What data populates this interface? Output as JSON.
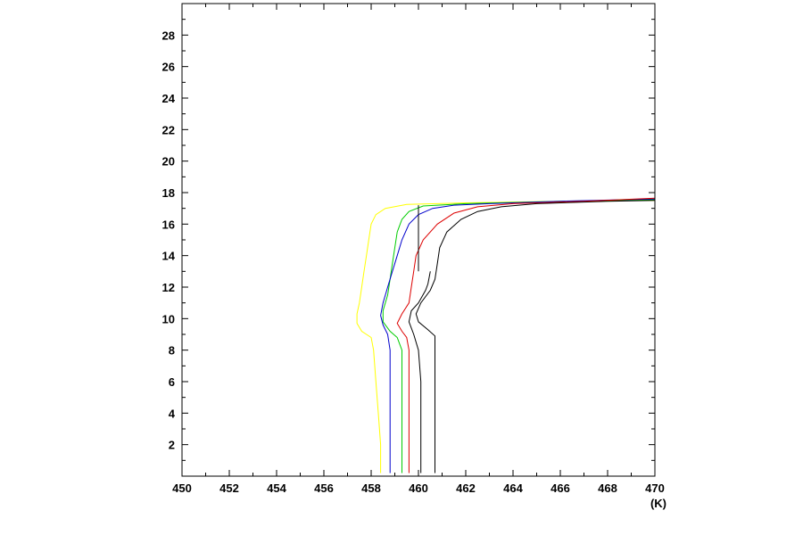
{
  "chart_data": {
    "type": "line",
    "title": "",
    "xlabel": "",
    "ylabel": "",
    "x_unit_label": "(K)",
    "xlim": [
      450,
      470
    ],
    "ylim": [
      0,
      30
    ],
    "x_ticks": [
      450,
      452,
      454,
      456,
      458,
      460,
      462,
      464,
      466,
      468,
      470
    ],
    "y_ticks": [
      2,
      4,
      6,
      8,
      10,
      12,
      14,
      16,
      18,
      20,
      22,
      24,
      26,
      28
    ],
    "grid": false,
    "legend": "none",
    "series": [
      {
        "color": "#ffff00",
        "points": [
          [
            458.4,
            0.2
          ],
          [
            458.4,
            2
          ],
          [
            458.3,
            4
          ],
          [
            458.2,
            6
          ],
          [
            458.1,
            8
          ],
          [
            458.0,
            8.8
          ],
          [
            457.6,
            9.2
          ],
          [
            457.4,
            9.7
          ],
          [
            457.4,
            10.3
          ],
          [
            457.5,
            11
          ],
          [
            457.6,
            12
          ],
          [
            457.7,
            13
          ],
          [
            457.8,
            14
          ],
          [
            457.9,
            15
          ],
          [
            458.0,
            16
          ],
          [
            458.2,
            16.6
          ],
          [
            458.6,
            17
          ],
          [
            459.5,
            17.25
          ],
          [
            462,
            17.35
          ],
          [
            466,
            17.45
          ],
          [
            470,
            17.5
          ]
        ]
      },
      {
        "color": "#00cc00",
        "points": [
          [
            459.3,
            0.2
          ],
          [
            459.3,
            2
          ],
          [
            459.3,
            4
          ],
          [
            459.3,
            6
          ],
          [
            459.3,
            8
          ],
          [
            459.1,
            8.8
          ],
          [
            458.8,
            9.2
          ],
          [
            458.5,
            9.8
          ],
          [
            458.5,
            10.5
          ],
          [
            458.7,
            11.5
          ],
          [
            458.8,
            12.5
          ],
          [
            458.9,
            13.5
          ],
          [
            459.0,
            14.5
          ],
          [
            459.1,
            15.5
          ],
          [
            459.3,
            16.3
          ],
          [
            459.6,
            16.8
          ],
          [
            460.2,
            17.15
          ],
          [
            462,
            17.3
          ],
          [
            466,
            17.45
          ],
          [
            470,
            17.55
          ]
        ]
      },
      {
        "color": "#0000cc",
        "points": [
          [
            458.8,
            0.2
          ],
          [
            458.8,
            2
          ],
          [
            458.8,
            4
          ],
          [
            458.8,
            6
          ],
          [
            458.8,
            8
          ],
          [
            458.7,
            9
          ],
          [
            458.5,
            9.6
          ],
          [
            458.4,
            10.2
          ],
          [
            458.5,
            11
          ],
          [
            458.7,
            12
          ],
          [
            458.9,
            13
          ],
          [
            459.1,
            14
          ],
          [
            459.3,
            15
          ],
          [
            459.6,
            16
          ],
          [
            460.0,
            16.6
          ],
          [
            460.6,
            17
          ],
          [
            461.5,
            17.2
          ],
          [
            463,
            17.3
          ],
          [
            466,
            17.45
          ],
          [
            470,
            17.6
          ]
        ]
      },
      {
        "color": "#dd0000",
        "points": [
          [
            459.6,
            0.2
          ],
          [
            459.6,
            2
          ],
          [
            459.6,
            4
          ],
          [
            459.6,
            6
          ],
          [
            459.6,
            8
          ],
          [
            459.5,
            8.8
          ],
          [
            459.3,
            9.2
          ],
          [
            459.1,
            9.7
          ],
          [
            459.3,
            10.3
          ],
          [
            459.6,
            11
          ],
          [
            459.7,
            12
          ],
          [
            459.8,
            13
          ],
          [
            459.9,
            14
          ],
          [
            460.2,
            15
          ],
          [
            460.8,
            16
          ],
          [
            461.5,
            16.7
          ],
          [
            462.5,
            17.1
          ],
          [
            464,
            17.3
          ],
          [
            467,
            17.45
          ],
          [
            470,
            17.65
          ]
        ]
      },
      {
        "color": "#000000",
        "points": [
          [
            460.1,
            0.2
          ],
          [
            460.1,
            2
          ],
          [
            460.1,
            4
          ],
          [
            460.1,
            6
          ],
          [
            460.0,
            8
          ],
          [
            459.8,
            9
          ],
          [
            459.6,
            9.8
          ],
          [
            459.7,
            10.5
          ],
          [
            460.0,
            11
          ],
          [
            460.3,
            11.8
          ],
          [
            460.4,
            12.2
          ],
          [
            460.5,
            13
          ]
        ]
      },
      {
        "color": "#000000",
        "points": [
          [
            460.0,
            13
          ],
          [
            460.0,
            14
          ],
          [
            460.0,
            15
          ],
          [
            460.0,
            16
          ],
          [
            460.0,
            17.2
          ]
        ]
      },
      {
        "color": "#000000",
        "points": [
          [
            460.7,
            0.2
          ],
          [
            460.7,
            2
          ],
          [
            460.7,
            4
          ],
          [
            460.7,
            6
          ],
          [
            460.7,
            8
          ],
          [
            460.7,
            8.9
          ],
          [
            460.4,
            9.3
          ],
          [
            460.0,
            9.8
          ],
          [
            459.9,
            10.3
          ],
          [
            460.1,
            11
          ],
          [
            460.5,
            11.8
          ],
          [
            460.7,
            12.5
          ],
          [
            460.8,
            13.5
          ],
          [
            460.9,
            14.5
          ],
          [
            461.2,
            15.5
          ],
          [
            461.8,
            16.3
          ],
          [
            462.5,
            16.8
          ],
          [
            463.5,
            17.1
          ],
          [
            465,
            17.3
          ],
          [
            468,
            17.45
          ],
          [
            470,
            17.5
          ]
        ]
      }
    ]
  }
}
